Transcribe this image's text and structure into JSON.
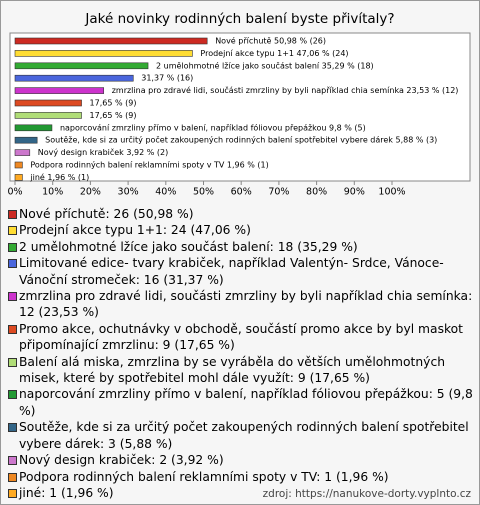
{
  "chart_data": {
    "type": "bar",
    "orientation": "horizontal",
    "title": "Jaké novinky rodinných balení byste přivítaly?",
    "values": [
      50.98,
      47.06,
      35.29,
      31.37,
      23.53,
      17.65,
      17.65,
      9.8,
      5.88,
      3.92,
      1.96,
      1.96
    ],
    "value_labels": [
      "Nové příchutě 50,98 % (26)",
      "Prodejní akce typu 1+1 47,06 % (24)",
      "2 umělohmotné lžíce jako součást balení 35,29 % (18)",
      "31,37 % (16)",
      "zmrzlina pro zdravé lidi, součásti zmrzliny by byli například chia semínka 23,53 % (12)",
      "17,65 % (9)",
      "17,65 % (9)",
      "naporcování zmrzliny přímo v balení, například fóliovou přepážkou 9,8 % (5)",
      "Soutěže, kde si za určitý počet zakoupených rodinných balení spotřebitel vybere dárek 5,88 % (3)",
      "Nový design krabiček 3,92 % (2)",
      "Podpora rodinných balení reklamními spoty v TV 1,96 % (1)",
      "jiné 1,96 % (1)"
    ],
    "colors": [
      "#cc2a22",
      "#ffdd33",
      "#33aa33",
      "#4a66dd",
      "#cc33cc",
      "#dd4a22",
      "#b0dd77",
      "#229933",
      "#336688",
      "#cc77cc",
      "#ee8822",
      "#ffaa22"
    ],
    "xlim": [
      0,
      100
    ],
    "xticks": [
      {
        "value": 0,
        "label": "0%"
      },
      {
        "value": 10,
        "label": "10%"
      },
      {
        "value": 20,
        "label": "20%"
      },
      {
        "value": 30,
        "label": "30%"
      },
      {
        "value": 40,
        "label": "40%"
      },
      {
        "value": 50,
        "label": "50%"
      },
      {
        "value": 60,
        "label": "60%"
      },
      {
        "value": 70,
        "label": "70%"
      },
      {
        "value": 80,
        "label": "80%"
      },
      {
        "value": 90,
        "label": "90%"
      },
      {
        "value": 100,
        "label": "100%"
      }
    ],
    "legend": [
      "Nové příchutě: 26 (50,98 %)",
      "Prodejní akce typu 1+1: 24 (47,06 %)",
      "2 umělohmotné lžíce jako součást balení: 18 (35,29 %)",
      "Limitované edice- tvary krabiček, například Valentýn- Srdce, Vánoce- Vánoční stromeček: 16 (31,37 %)",
      "zmrzlina pro zdravé lidi, součásti zmrzliny by byli například chia semínka: 12 (23,53 %)",
      "Promo akce, ochutnávky v obchodě, součástí promo akce by byl maskot připomínající zmrzlinu: 9 (17,65 %)",
      "Balení alá miska, zmrzlina by se vyráběla do větších umělohmotných misek, které by spotřebitel mohl dále využít: 9 (17,65 %)",
      "naporcování zmrzliny přímo v balení, například fóliovou přepážkou: 5 (9,8 %)",
      "Soutěže, kde si za určitý počet zakoupených rodinných balení spotřebitel vybere dárek: 3 (5,88 %)",
      "Nový design krabiček: 2 (3,92 %)",
      "Podpora rodinných balení reklamními spoty v TV: 1 (1,96 %)",
      "jiné: 1 (1,96 %)"
    ]
  },
  "source": "zdroj: https://nanukove-dorty.vyplnto.cz"
}
